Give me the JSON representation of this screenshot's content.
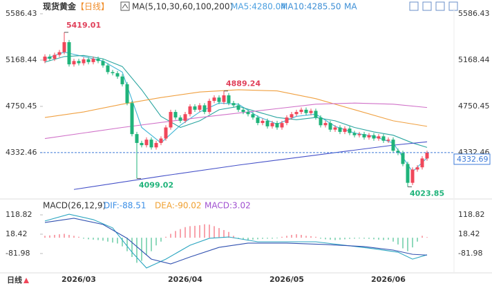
{
  "header": {
    "title": "现货黄金",
    "period": "【日线】",
    "ma_params": "MA(5,10,30,60,100,200)",
    "ma_legend": [
      {
        "text": "MA5:4280.04",
        "color": "#4a9fe0"
      },
      {
        "text": "MA10:4285.50",
        "color": "#3d8fd6"
      },
      {
        "text": "MA",
        "color": "#3d8fd6"
      }
    ]
  },
  "chart_data": [
    {
      "type": "candlestick",
      "categories": [
        null,
        null,
        null,
        null,
        null,
        null,
        null,
        "2026/03",
        null,
        null,
        null,
        null,
        null,
        null,
        null,
        null,
        null,
        null,
        null,
        null,
        null,
        null,
        null,
        null,
        null,
        null,
        null,
        null,
        null,
        "2026/04",
        null,
        null,
        null,
        null,
        null,
        null,
        null,
        null,
        null,
        null,
        null,
        null,
        null,
        null,
        null,
        null,
        null,
        null,
        null,
        null,
        "2026/05",
        null,
        null,
        null,
        null,
        null,
        null,
        null,
        null,
        null,
        null,
        null,
        null,
        null,
        null,
        null,
        null,
        null,
        null,
        null,
        null,
        "2026/06",
        null,
        null,
        null,
        null,
        null,
        null,
        null,
        null
      ],
      "candles": {
        "open": [
          5160,
          5200,
          5180,
          5215,
          5240,
          5330,
          5130,
          5160,
          5140,
          5175,
          5150,
          5180,
          5160,
          5120,
          5060,
          5050,
          5020,
          4950,
          4780,
          4500,
          4420,
          4400,
          4450,
          4380,
          4420,
          4460,
          4560,
          4700,
          4650,
          4620,
          4680,
          4750,
          4720,
          4760,
          4700,
          4800,
          4830,
          4790,
          4850,
          4780,
          4760,
          4720,
          4700,
          4680,
          4650,
          4600,
          4620,
          4570,
          4600,
          4560,
          4600,
          4650,
          4680,
          4700,
          4720,
          4690,
          4710,
          4650,
          4580,
          4600,
          4540,
          4560,
          4520,
          4550,
          4510,
          4490,
          4500,
          4470,
          4490,
          4460,
          4480,
          4440,
          4450,
          4350,
          4330,
          4230,
          4060,
          4180,
          4200,
          4280
        ],
        "high": [
          5220,
          5220,
          5235,
          5260,
          5419.01,
          5350,
          5180,
          5180,
          5195,
          5195,
          5200,
          5200,
          5180,
          5140,
          5080,
          5070,
          5040,
          4970,
          4800,
          4520,
          4440,
          4470,
          4470,
          4440,
          4480,
          4580,
          4720,
          4720,
          4670,
          4700,
          4770,
          4770,
          4780,
          4780,
          4820,
          4850,
          4850,
          4889.24,
          4870,
          4800,
          4780,
          4740,
          4720,
          4700,
          4670,
          4640,
          4640,
          4620,
          4620,
          4620,
          4670,
          4700,
          4720,
          4740,
          4740,
          4730,
          4730,
          4670,
          4620,
          4620,
          4580,
          4580,
          4570,
          4570,
          4530,
          4520,
          4520,
          4510,
          4510,
          4500,
          4500,
          4470,
          4470,
          4370,
          4350,
          4250,
          4200,
          4220,
          4300,
          4350
        ],
        "low": [
          5140,
          5160,
          5160,
          5195,
          5220,
          5110,
          5110,
          5120,
          5120,
          5130,
          5130,
          5140,
          5100,
          5040,
          5030,
          5000,
          4930,
          4760,
          4480,
          4099.02,
          4380,
          4380,
          4360,
          4360,
          4400,
          4440,
          4540,
          4630,
          4600,
          4600,
          4660,
          4700,
          4700,
          4680,
          4680,
          4780,
          4770,
          4770,
          4760,
          4740,
          4700,
          4680,
          4660,
          4630,
          4580,
          4580,
          4550,
          4550,
          4540,
          4540,
          4580,
          4630,
          4660,
          4680,
          4670,
          4670,
          4630,
          4560,
          4560,
          4520,
          4520,
          4500,
          4500,
          4490,
          4470,
          4470,
          4450,
          4450,
          4440,
          4440,
          4420,
          4420,
          4330,
          4310,
          4210,
          4023.85,
          4040,
          4160,
          4180,
          4260
        ],
        "close": [
          5200,
          5180,
          5215,
          5240,
          5330,
          5130,
          5160,
          5140,
          5175,
          5150,
          5180,
          5160,
          5120,
          5060,
          5050,
          5020,
          4950,
          4780,
          4500,
          4420,
          4400,
          4450,
          4380,
          4420,
          4460,
          4560,
          4700,
          4650,
          4620,
          4680,
          4750,
          4720,
          4760,
          4700,
          4800,
          4830,
          4790,
          4850,
          4780,
          4760,
          4720,
          4700,
          4680,
          4650,
          4600,
          4620,
          4570,
          4600,
          4560,
          4600,
          4650,
          4680,
          4700,
          4720,
          4690,
          4710,
          4650,
          4580,
          4600,
          4540,
          4560,
          4520,
          4550,
          4510,
          4490,
          4500,
          4470,
          4490,
          4460,
          4480,
          4440,
          4450,
          4350,
          4330,
          4230,
          4060,
          4180,
          4200,
          4280,
          4332.69
        ]
      },
      "up_color": "#f0475a",
      "down_color": "#1fb37a",
      "last_color": "#3a78d8",
      "high_label_color": "#e0405a",
      "low_label_color": "#1fb37a",
      "ylim": [
        3933,
        5636
      ],
      "yticks": [
        5586.43,
        5168.44,
        4750.45,
        4332.46
      ],
      "ma_lines": [
        {
          "color": "#3fb6d6",
          "x": [
            0,
            4,
            8,
            12,
            16,
            20,
            24,
            28,
            32,
            36,
            40,
            44,
            48,
            52,
            56,
            60,
            64,
            68,
            72,
            76,
            79
          ],
          "values": [
            5180,
            5240,
            5200,
            5160,
            5060,
            4560,
            4420,
            4580,
            4700,
            4780,
            4770,
            4660,
            4590,
            4660,
            4680,
            4570,
            4510,
            4480,
            4420,
            4160,
            4285.5
          ]
        },
        {
          "color": "#2aa5a0",
          "x": [
            0,
            4,
            8,
            12,
            16,
            20,
            24,
            28,
            32,
            36,
            40,
            44,
            48,
            52,
            56,
            60,
            64,
            68,
            72,
            76,
            79
          ],
          "values": [
            5150,
            5200,
            5210,
            5180,
            5110,
            4900,
            4660,
            4560,
            4620,
            4720,
            4750,
            4700,
            4650,
            4630,
            4650,
            4620,
            4560,
            4520,
            4490,
            4420,
            4380
          ]
        },
        {
          "color": "#f0a040",
          "x": [
            0,
            8,
            16,
            24,
            32,
            40,
            48,
            56,
            64,
            72,
            79
          ],
          "values": [
            4650,
            4700,
            4770,
            4830,
            4880,
            4900,
            4890,
            4820,
            4720,
            4620,
            4570
          ]
        },
        {
          "color": "#d070c8",
          "x": [
            0,
            16,
            32,
            48,
            56,
            64,
            72,
            79
          ],
          "values": [
            4460,
            4560,
            4650,
            4730,
            4770,
            4780,
            4770,
            4740
          ]
        },
        {
          "color": "#4450c8",
          "x": [
            6,
            24,
            40,
            56,
            72,
            79
          ],
          "values": [
            4000,
            4120,
            4220,
            4310,
            4400,
            4430
          ]
        }
      ]
    },
    {
      "type": "macd",
      "title": "MACD(26,12,9)",
      "legend": [
        {
          "text": "DIF:-88.51",
          "color": "#3a8ee6"
        },
        {
          "text": "DEA:-90.02",
          "color": "#f0a030"
        },
        {
          "text": "MACD:3.02",
          "color": "#a050d0"
        }
      ],
      "histogram": [
        10,
        12,
        15,
        18,
        20,
        15,
        10,
        5,
        -5,
        -8,
        -10,
        -12,
        -15,
        -20,
        -25,
        -30,
        -45,
        -70,
        -100,
        -130,
        -120,
        -90,
        -70,
        -40,
        -20,
        5,
        20,
        35,
        45,
        55,
        60,
        62,
        65,
        70,
        68,
        60,
        50,
        40,
        30,
        10,
        -5,
        -10,
        -12,
        -10,
        -8,
        -6,
        -5,
        -5,
        -3,
        5,
        10,
        15,
        18,
        15,
        10,
        8,
        5,
        -5,
        -8,
        -10,
        -12,
        -10,
        -8,
        -6,
        -5,
        -4,
        -5,
        -6,
        -8,
        -10,
        -12,
        -10,
        -20,
        -35,
        -55,
        -70,
        -50,
        -20,
        10,
        3.02
      ],
      "up_color": "#f0475a",
      "down_color": "#1fb37a",
      "dif": {
        "color": "#2aa5c0",
        "x": [
          0,
          5,
          10,
          14,
          18,
          21,
          25,
          30,
          34,
          38,
          44,
          50,
          56,
          62,
          68,
          73,
          76,
          79
        ],
        "values": [
          87,
          122,
          94,
          51,
          -75,
          -157,
          -111,
          -39,
          -3,
          4,
          -21,
          -21,
          -21,
          -39,
          -57,
          -75,
          -111,
          -88.51
        ]
      },
      "dea": {
        "color": "#3050b0",
        "x": [
          0,
          6,
          12,
          17,
          22,
          26,
          30,
          36,
          42,
          50,
          58,
          66,
          72,
          76,
          79
        ],
        "values": [
          79,
          101,
          69,
          -3,
          -111,
          -136,
          -100,
          -50,
          -28,
          -28,
          -35,
          -46,
          -64,
          -86,
          -90.02
        ]
      },
      "ylim": [
        -171.6,
        186.9
      ],
      "yticks": [
        118.82,
        18.42,
        -81.98
      ]
    }
  ],
  "footer": {
    "period": "日线"
  }
}
